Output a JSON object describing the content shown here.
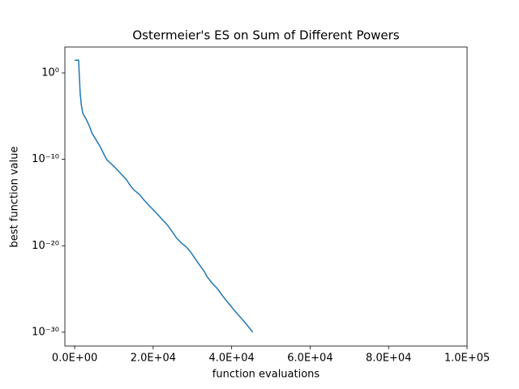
{
  "chart_data": {
    "type": "line",
    "title": "Ostermeier's ES on Sum of Different Powers",
    "x_label": "function evaluations",
    "y_label": "best function value",
    "y_scale": "log",
    "x": [
      0,
      1000,
      1200,
      1400,
      1700,
      2100,
      2900,
      3700,
      4500,
      5400,
      6600,
      7400,
      8200,
      9900,
      11500,
      13200,
      14000,
      15000,
      16500,
      17700,
      19000,
      20200,
      21400,
      22300,
      23500,
      24700,
      26000,
      27200,
      28500,
      29700,
      30500,
      31800,
      33000,
      33800,
      35100,
      36300,
      37500,
      38800,
      40000,
      41200,
      42500,
      43700,
      45400
    ],
    "series": [
      {
        "color": "#1f77b4",
        "values": [
          30.0,
          30.0,
          0.34,
          0.0046,
          0.00018,
          2e-05,
          4.6e-06,
          8e-07,
          9e-08,
          2e-08,
          2.4e-09,
          4.3e-10,
          9e-11,
          1.7e-11,
          3e-12,
          4.3e-13,
          1.2e-13,
          3.2e-14,
          8.7e-15,
          1.9e-15,
          4.3e-16,
          1.2e-16,
          3.2e-17,
          1.1e-17,
          3e-18,
          5.2e-19,
          7.6e-20,
          2.1e-20,
          7e-21,
          1.5e-21,
          4.3e-22,
          6.2e-23,
          1.1e-23,
          2.4e-24,
          4.3e-25,
          1.2e-25,
          2.1e-26,
          3.7e-27,
          8.1e-28,
          1.8e-28,
          4e-29,
          8.9e-30,
          1e-30
        ]
      }
    ],
    "xlim": [
      -2500,
      100000
    ],
    "xticks": [
      {
        "value": 0,
        "label": "0.0E+00"
      },
      {
        "value": 20000,
        "label": "2.0E+04"
      },
      {
        "value": 40000,
        "label": "4.0E+04"
      },
      {
        "value": 60000,
        "label": "6.0E+04"
      },
      {
        "value": 80000,
        "label": "8.0E+04"
      },
      {
        "value": 100000,
        "label": "1.0E+05"
      }
    ],
    "ylim": [
      2.5e-32,
      1000
    ],
    "yticks": [
      {
        "value": 1,
        "label": "10⁰"
      },
      {
        "value": 1e-10,
        "label": "10⁻¹⁰"
      },
      {
        "value": 1e-20,
        "label": "10⁻²⁰"
      },
      {
        "value": 1e-30,
        "label": "10⁻³⁰"
      }
    ]
  }
}
